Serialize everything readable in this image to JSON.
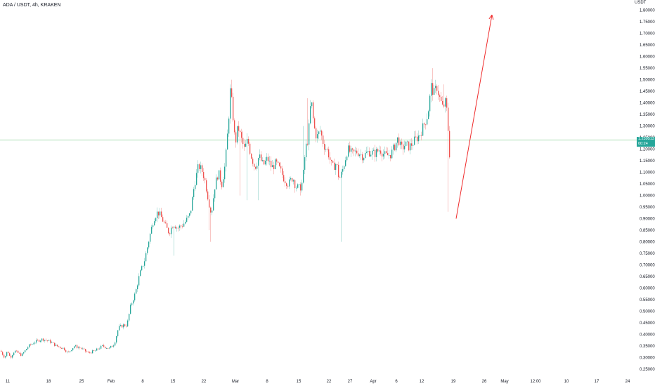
{
  "header": {
    "title": "ADA / USDT, 4h, KRAKEN",
    "currency": "USDT"
  },
  "current_price": {
    "value": "1.239513",
    "countdown": "00:24"
  },
  "colors": {
    "up": "#26a69a",
    "down": "#ef5350",
    "wick_up": "#8ed1c8",
    "wick_down": "#f4a09e",
    "arrow": "#ef2b2b",
    "price_line": "#9bd7a5",
    "axis_text": "#131722"
  },
  "chart_data": {
    "type": "candlestick",
    "title": "ADA / USDT, 4h, KRAKEN",
    "y_ticks": [
      "1.800000",
      "1.750000",
      "1.700000",
      "1.650000",
      "1.600000",
      "1.550000",
      "1.500000",
      "1.450000",
      "1.400000",
      "1.350000",
      "1.300000",
      "1.250000",
      "1.200000",
      "1.150000",
      "1.100000",
      "1.050000",
      "1.000000",
      "0.950000",
      "0.900000",
      "0.850000",
      "0.800000",
      "0.750000",
      "0.700000",
      "0.650000",
      "0.600000",
      "0.550000",
      "0.500000",
      "0.450000",
      "0.400000",
      "0.350000",
      "0.300000",
      "0.250000"
    ],
    "x_ticks": [
      "11",
      "18",
      "25",
      "Feb",
      "8",
      "15",
      "22",
      "Mar",
      "8",
      "15",
      "22",
      "27",
      "Apr",
      "6",
      "12",
      "19",
      "26",
      "May",
      "12:00",
      "10",
      "17",
      "24"
    ],
    "ylim": [
      0.22,
      1.83
    ],
    "price_anchors": [
      [
        0,
        0.33
      ],
      [
        6,
        0.3
      ],
      [
        10,
        0.33
      ],
      [
        14,
        0.3
      ],
      [
        20,
        0.33
      ],
      [
        30,
        0.31
      ],
      [
        40,
        0.35
      ],
      [
        50,
        0.37
      ],
      [
        60,
        0.38
      ],
      [
        70,
        0.37
      ],
      [
        80,
        0.35
      ],
      [
        90,
        0.34
      ],
      [
        96,
        0.32
      ],
      [
        105,
        0.35
      ],
      [
        115,
        0.34
      ],
      [
        125,
        0.32
      ],
      [
        135,
        0.33
      ],
      [
        145,
        0.35
      ],
      [
        155,
        0.34
      ],
      [
        162,
        0.36
      ],
      [
        168,
        0.43
      ],
      [
        175,
        0.44
      ],
      [
        180,
        0.44
      ],
      [
        185,
        0.52
      ],
      [
        192,
        0.58
      ],
      [
        198,
        0.66
      ],
      [
        205,
        0.72
      ],
      [
        212,
        0.82
      ],
      [
        218,
        0.9
      ],
      [
        224,
        0.93
      ],
      [
        230,
        0.9
      ],
      [
        236,
        0.86
      ],
      [
        240,
        0.84
      ],
      [
        246,
        0.88
      ],
      [
        252,
        0.86
      ],
      [
        258,
        0.87
      ],
      [
        264,
        0.89
      ],
      [
        270,
        0.92
      ],
      [
        276,
        1.05
      ],
      [
        282,
        1.13
      ],
      [
        288,
        1.1
      ],
      [
        292,
        1.05
      ],
      [
        296,
        0.98
      ],
      [
        300,
        0.92
      ],
      [
        305,
        1.04
      ],
      [
        310,
        1.1
      ],
      [
        315,
        1.05
      ],
      [
        320,
        1.14
      ],
      [
        324,
        1.3
      ],
      [
        327,
        1.45
      ],
      [
        330,
        1.38
      ],
      [
        334,
        1.22
      ],
      [
        338,
        1.3
      ],
      [
        342,
        1.25
      ],
      [
        347,
        1.2
      ],
      [
        352,
        1.24
      ],
      [
        356,
        1.18
      ],
      [
        362,
        1.12
      ],
      [
        368,
        1.17
      ],
      [
        374,
        1.13
      ],
      [
        380,
        1.16
      ],
      [
        386,
        1.12
      ],
      [
        392,
        1.14
      ],
      [
        398,
        1.11
      ],
      [
        404,
        1.07
      ],
      [
        410,
        1.05
      ],
      [
        416,
        1.08
      ],
      [
        420,
        1.04
      ],
      [
        426,
        1.03
      ],
      [
        430,
        1.06
      ],
      [
        434,
        1.2
      ],
      [
        438,
        1.25
      ],
      [
        442,
        1.42
      ],
      [
        446,
        1.3
      ],
      [
        450,
        1.25
      ],
      [
        455,
        1.28
      ],
      [
        460,
        1.22
      ],
      [
        466,
        1.19
      ],
      [
        472,
        1.12
      ],
      [
        478,
        1.14
      ],
      [
        482,
        1.07
      ],
      [
        486,
        1.1
      ],
      [
        490,
        1.15
      ],
      [
        494,
        1.2
      ],
      [
        500,
        1.18
      ],
      [
        508,
        1.19
      ],
      [
        516,
        1.17
      ],
      [
        524,
        1.19
      ],
      [
        532,
        1.18
      ],
      [
        540,
        1.2
      ],
      [
        548,
        1.17
      ],
      [
        556,
        1.18
      ],
      [
        562,
        1.22
      ],
      [
        566,
        1.25
      ],
      [
        570,
        1.2
      ],
      [
        576,
        1.22
      ],
      [
        582,
        1.21
      ],
      [
        590,
        1.24
      ],
      [
        596,
        1.26
      ],
      [
        602,
        1.3
      ],
      [
        608,
        1.35
      ],
      [
        613,
        1.47
      ],
      [
        617,
        1.44
      ],
      [
        621,
        1.47
      ],
      [
        625,
        1.42
      ],
      [
        629,
        1.38
      ],
      [
        633,
        1.4
      ],
      [
        636,
        1.35
      ],
      [
        638,
        1.22
      ],
      [
        640,
        1.14
      ]
    ],
    "arrow": {
      "from": [
        649,
        0.9
      ],
      "to": [
        700,
        1.78
      ]
    },
    "price_line": 1.239513
  }
}
